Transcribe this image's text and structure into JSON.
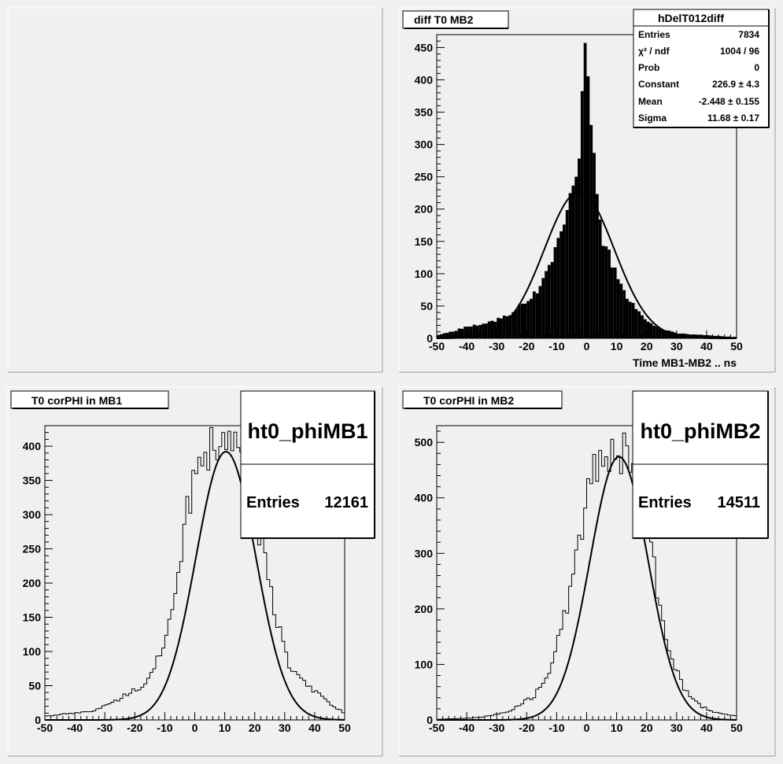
{
  "chart_data": [
    {
      "type": "bar",
      "title": "diff T0 MB2",
      "xlabel": "Time MB1-MB2  ..  ns",
      "ylabel": "",
      "xlim": [
        -50,
        50
      ],
      "ylim": [
        0,
        470
      ],
      "x_ticks": [
        -50,
        -40,
        -30,
        -20,
        -10,
        0,
        10,
        20,
        30,
        40,
        50
      ],
      "y_ticks": [
        0,
        50,
        100,
        150,
        200,
        250,
        300,
        350,
        400,
        450
      ],
      "histogram": {
        "filled": true,
        "bin_width": 1,
        "x": [
          -50,
          -45,
          -40,
          -35,
          -30,
          -25,
          -20,
          -18,
          -16,
          -14,
          -12,
          -10,
          -8,
          -6,
          -4,
          -3,
          -2,
          -1,
          0,
          0.5,
          1,
          2,
          3,
          4,
          6,
          8,
          10,
          12,
          14,
          16,
          18,
          20,
          22,
          25,
          30,
          35,
          40,
          45,
          50
        ],
        "values": [
          5,
          10,
          18,
          22,
          28,
          40,
          55,
          65,
          80,
          100,
          120,
          140,
          175,
          200,
          240,
          270,
          330,
          400,
          462,
          430,
          360,
          300,
          240,
          180,
          145,
          120,
          95,
          75,
          60,
          48,
          36,
          28,
          22,
          15,
          8,
          6,
          5,
          3,
          2
        ]
      },
      "fit_curve": {
        "constant": 226.9,
        "mean": -2.448,
        "sigma": 11.68
      },
      "stats_box": {
        "title": "hDelT012diff",
        "rows": [
          {
            "label": "Entries",
            "value": "7834"
          },
          {
            "label": "χ² / ndf",
            "value": "1004 / 96"
          },
          {
            "label": "Prob",
            "value": "0"
          },
          {
            "label": "Constant",
            "value": "226.9 ± 4.3"
          },
          {
            "label": "Mean",
            "value": "-2.448 ± 0.155"
          },
          {
            "label": "Sigma",
            "value": "11.68 ± 0.17"
          }
        ]
      }
    },
    {
      "type": "bar",
      "title": "T0 corPHI in MB1",
      "xlabel": "",
      "ylabel": "",
      "xlim": [
        -50,
        50
      ],
      "ylim": [
        0,
        430
      ],
      "x_ticks": [
        -50,
        -40,
        -30,
        -20,
        -10,
        0,
        10,
        20,
        30,
        40,
        50
      ],
      "y_ticks": [
        0,
        50,
        100,
        150,
        200,
        250,
        300,
        350,
        400
      ],
      "histogram": {
        "filled": false,
        "bin_width": 1,
        "x": [
          -50,
          -45,
          -40,
          -35,
          -30,
          -25,
          -22,
          -20,
          -18,
          -16,
          -14,
          -12,
          -10,
          -8,
          -6,
          -4,
          -2,
          0,
          2,
          4,
          6,
          8,
          10,
          12,
          14,
          16,
          18,
          20,
          22,
          24,
          26,
          28,
          30,
          32,
          35,
          38,
          42,
          46,
          50
        ],
        "values": [
          5,
          8,
          10,
          12,
          20,
          30,
          40,
          45,
          42,
          55,
          70,
          95,
          120,
          155,
          200,
          250,
          320,
          360,
          390,
          395,
          400,
          400,
          395,
          392,
          385,
          370,
          340,
          305,
          270,
          230,
          175,
          135,
          100,
          75,
          60,
          50,
          35,
          20,
          10
        ]
      },
      "fit_curve": {
        "constant": 392,
        "mean": 10.4,
        "sigma": 10.0
      },
      "stats_box": {
        "title": "ht0_phiMB1",
        "rows": [
          {
            "label": "Entries",
            "value": "12161"
          }
        ]
      }
    },
    {
      "type": "bar",
      "title": "T0 corPHI in MB2",
      "xlabel": "",
      "ylabel": "",
      "xlim": [
        -50,
        50
      ],
      "ylim": [
        0,
        530
      ],
      "x_ticks": [
        -50,
        -40,
        -30,
        -20,
        -10,
        0,
        10,
        20,
        30,
        40,
        50
      ],
      "y_ticks": [
        0,
        100,
        200,
        300,
        400,
        500
      ],
      "histogram": {
        "filled": false,
        "bin_width": 1,
        "x": [
          -50,
          -45,
          -40,
          -35,
          -30,
          -25,
          -22,
          -20,
          -18,
          -16,
          -14,
          -12,
          -10,
          -8,
          -6,
          -4,
          -2,
          0,
          2,
          4,
          6,
          8,
          10,
          12,
          14,
          16,
          18,
          20,
          22,
          24,
          26,
          28,
          30,
          32,
          35,
          38,
          42,
          46,
          50
        ],
        "values": [
          1,
          2,
          3,
          5,
          10,
          18,
          30,
          35,
          40,
          55,
          75,
          95,
          140,
          175,
          210,
          280,
          320,
          410,
          450,
          470,
          480,
          480,
          480,
          478,
          470,
          450,
          400,
          350,
          290,
          215,
          165,
          120,
          90,
          60,
          40,
          25,
          15,
          10,
          8
        ]
      },
      "fit_curve": {
        "constant": 474,
        "mean": 10.8,
        "sigma": 9.7
      },
      "stats_box": {
        "title": "ht0_phiMB2",
        "rows": [
          {
            "label": "Entries",
            "value": "14511"
          }
        ]
      }
    }
  ]
}
